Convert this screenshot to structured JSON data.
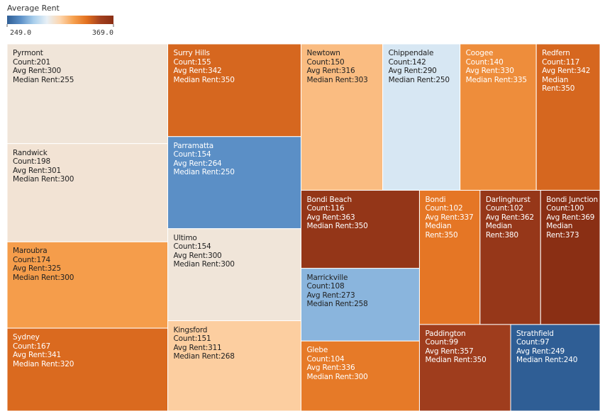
{
  "chart_data": {
    "type": "treemap",
    "legend": {
      "title": "Average Rent",
      "colors": [
        "#2f5e95",
        "#5b8fc6",
        "#a9cfec",
        "#e8f0f6",
        "#fdd5ad",
        "#f6a04e",
        "#e2701f",
        "#a4411f",
        "#8a2f14"
      ],
      "ticks": [
        {
          "value": 249,
          "label": "249.0"
        },
        {
          "value": 369,
          "label": "369.0"
        }
      ]
    },
    "field_labels": {
      "count": "Count:",
      "avg_rent": "Avg Rent:",
      "median_rent": "Median Rent:"
    },
    "items": [
      {
        "name": "Pyrmont",
        "count": 201,
        "avg_rent": 300,
        "median_rent": 255
      },
      {
        "name": "Randwick",
        "count": 198,
        "avg_rent": 301,
        "median_rent": 300
      },
      {
        "name": "Maroubra",
        "count": 174,
        "avg_rent": 325,
        "median_rent": 300
      },
      {
        "name": "Sydney",
        "count": 167,
        "avg_rent": 341,
        "median_rent": 320
      },
      {
        "name": "Surry Hills",
        "count": 155,
        "avg_rent": 342,
        "median_rent": 350
      },
      {
        "name": "Parramatta",
        "count": 154,
        "avg_rent": 264,
        "median_rent": 250
      },
      {
        "name": "Ultimo",
        "count": 154,
        "avg_rent": 300,
        "median_rent": 300
      },
      {
        "name": "Kingsford",
        "count": 151,
        "avg_rent": 311,
        "median_rent": 268
      },
      {
        "name": "Newtown",
        "count": 150,
        "avg_rent": 316,
        "median_rent": 303
      },
      {
        "name": "Chippendale",
        "count": 142,
        "avg_rent": 290,
        "median_rent": 250
      },
      {
        "name": "Coogee",
        "count": 140,
        "avg_rent": 330,
        "median_rent": 335
      },
      {
        "name": "Redfern",
        "count": 117,
        "avg_rent": 342,
        "median_rent": 350
      },
      {
        "name": "Bondi Beach",
        "count": 116,
        "avg_rent": 363,
        "median_rent": 350
      },
      {
        "name": "Bondi",
        "count": 102,
        "avg_rent": 337,
        "median_rent": 350
      },
      {
        "name": "Darlinghurst",
        "count": 102,
        "avg_rent": 362,
        "median_rent": 380
      },
      {
        "name": "Bondi Junction",
        "count": 100,
        "avg_rent": 369,
        "median_rent": 373
      },
      {
        "name": "Marrickville",
        "count": 108,
        "avg_rent": 273,
        "median_rent": 258
      },
      {
        "name": "Glebe",
        "count": 104,
        "avg_rent": 336,
        "median_rent": 300
      },
      {
        "name": "Paddington",
        "count": 99,
        "avg_rent": 357,
        "median_rent": 350
      },
      {
        "name": "Strathfield",
        "count": 97,
        "avg_rent": 249,
        "median_rent": 240
      }
    ]
  }
}
